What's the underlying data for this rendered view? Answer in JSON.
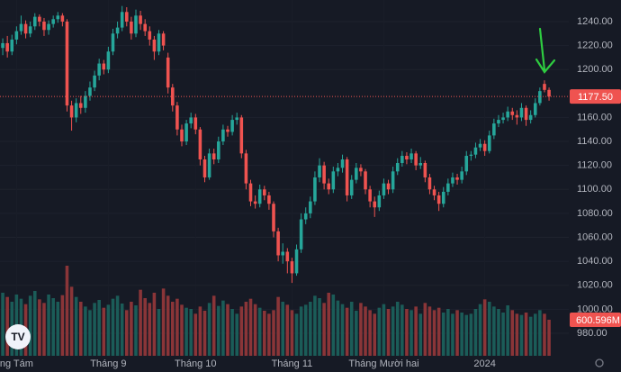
{
  "chart_data": {
    "type": "candlestick",
    "colors": {
      "up": "#26a69a",
      "down": "#ef5350",
      "up_volume": "#1b5c58",
      "down_volume": "#8a3538"
    },
    "candles": [
      [
        1218,
        1226,
        1212,
        1222
      ],
      [
        1222,
        1228,
        1210,
        1215
      ],
      [
        1215,
        1229,
        1212,
        1225
      ],
      [
        1225,
        1236,
        1221,
        1232
      ],
      [
        1232,
        1245,
        1229,
        1238
      ],
      [
        1238,
        1241,
        1226,
        1230
      ],
      [
        1230,
        1240,
        1227,
        1236
      ],
      [
        1236,
        1247,
        1233,
        1244
      ],
      [
        1244,
        1246,
        1236,
        1240
      ],
      [
        1240,
        1243,
        1228,
        1233
      ],
      [
        1233,
        1241,
        1229,
        1238
      ],
      [
        1238,
        1245,
        1235,
        1242
      ],
      [
        1242,
        1248,
        1239,
        1245
      ],
      [
        1245,
        1247,
        1236,
        1240
      ],
      [
        1240,
        1242,
        1165,
        1170
      ],
      [
        1170,
        1174,
        1149,
        1160
      ],
      [
        1160,
        1176,
        1156,
        1172
      ],
      [
        1172,
        1178,
        1163,
        1168
      ],
      [
        1168,
        1182,
        1164,
        1178
      ],
      [
        1178,
        1190,
        1174,
        1185
      ],
      [
        1185,
        1199,
        1182,
        1195
      ],
      [
        1195,
        1209,
        1191,
        1205
      ],
      [
        1205,
        1208,
        1196,
        1200
      ],
      [
        1200,
        1219,
        1197,
        1215
      ],
      [
        1215,
        1234,
        1212,
        1230
      ],
      [
        1230,
        1240,
        1226,
        1235
      ],
      [
        1235,
        1253,
        1232,
        1248
      ],
      [
        1248,
        1252,
        1236,
        1240
      ],
      [
        1240,
        1244,
        1225,
        1230
      ],
      [
        1230,
        1250,
        1227,
        1245
      ],
      [
        1245,
        1249,
        1233,
        1238
      ],
      [
        1238,
        1242,
        1228,
        1232
      ],
      [
        1232,
        1236,
        1220,
        1225
      ],
      [
        1225,
        1228,
        1208,
        1215
      ],
      [
        1215,
        1233,
        1212,
        1230
      ],
      [
        1230,
        1232,
        1216,
        1220
      ],
      [
        1210,
        1214,
        1180,
        1185
      ],
      [
        1185,
        1188,
        1165,
        1170
      ],
      [
        1170,
        1173,
        1145,
        1150
      ],
      [
        1150,
        1154,
        1136,
        1140
      ],
      [
        1140,
        1158,
        1137,
        1155
      ],
      [
        1155,
        1164,
        1151,
        1160
      ],
      [
        1160,
        1163,
        1146,
        1150
      ],
      [
        1150,
        1152,
        1120,
        1125
      ],
      [
        1125,
        1128,
        1106,
        1110
      ],
      [
        1110,
        1134,
        1108,
        1130
      ],
      [
        1130,
        1134,
        1121,
        1125
      ],
      [
        1125,
        1144,
        1122,
        1140
      ],
      [
        1140,
        1154,
        1137,
        1150
      ],
      [
        1150,
        1153,
        1144,
        1148
      ],
      [
        1148,
        1162,
        1145,
        1158
      ],
      [
        1158,
        1164,
        1154,
        1160
      ],
      [
        1160,
        1162,
        1126,
        1130
      ],
      [
        1130,
        1133,
        1100,
        1105
      ],
      [
        1105,
        1108,
        1086,
        1090
      ],
      [
        1090,
        1095,
        1084,
        1088
      ],
      [
        1088,
        1104,
        1085,
        1100
      ],
      [
        1100,
        1103,
        1091,
        1095
      ],
      [
        1095,
        1098,
        1083,
        1088
      ],
      [
        1088,
        1090,
        1060,
        1065
      ],
      [
        1065,
        1068,
        1040,
        1045
      ],
      [
        1045,
        1055,
        1038,
        1048
      ],
      [
        1048,
        1051,
        1030,
        1040
      ],
      [
        1040,
        1043,
        1022,
        1030
      ],
      [
        1030,
        1054,
        1028,
        1050
      ],
      [
        1050,
        1080,
        1047,
        1075
      ],
      [
        1075,
        1085,
        1071,
        1080
      ],
      [
        1080,
        1094,
        1076,
        1090
      ],
      [
        1090,
        1115,
        1087,
        1110
      ],
      [
        1110,
        1126,
        1106,
        1120
      ],
      [
        1120,
        1123,
        1100,
        1105
      ],
      [
        1105,
        1109,
        1096,
        1100
      ],
      [
        1100,
        1119,
        1097,
        1115
      ],
      [
        1115,
        1122,
        1111,
        1118
      ],
      [
        1118,
        1129,
        1114,
        1125
      ],
      [
        1125,
        1127,
        1090,
        1095
      ],
      [
        1095,
        1112,
        1092,
        1108
      ],
      [
        1108,
        1122,
        1105,
        1118
      ],
      [
        1118,
        1121,
        1111,
        1115
      ],
      [
        1115,
        1117,
        1096,
        1100
      ],
      [
        1100,
        1103,
        1085,
        1090
      ],
      [
        1090,
        1094,
        1077,
        1085
      ],
      [
        1085,
        1099,
        1082,
        1095
      ],
      [
        1095,
        1109,
        1092,
        1105
      ],
      [
        1105,
        1108,
        1096,
        1100
      ],
      [
        1100,
        1119,
        1097,
        1115
      ],
      [
        1115,
        1126,
        1112,
        1122
      ],
      [
        1122,
        1132,
        1119,
        1128
      ],
      [
        1128,
        1131,
        1121,
        1125
      ],
      [
        1125,
        1134,
        1122,
        1130
      ],
      [
        1130,
        1132,
        1116,
        1120
      ],
      [
        1120,
        1127,
        1117,
        1122
      ],
      [
        1122,
        1124,
        1106,
        1110
      ],
      [
        1110,
        1113,
        1096,
        1100
      ],
      [
        1100,
        1103,
        1091,
        1095
      ],
      [
        1095,
        1098,
        1082,
        1088
      ],
      [
        1088,
        1102,
        1085,
        1098
      ],
      [
        1098,
        1109,
        1095,
        1105
      ],
      [
        1105,
        1114,
        1102,
        1110
      ],
      [
        1110,
        1113,
        1104,
        1108
      ],
      [
        1108,
        1119,
        1105,
        1115
      ],
      [
        1115,
        1132,
        1112,
        1128
      ],
      [
        1128,
        1132,
        1124,
        1129
      ],
      [
        1129,
        1139,
        1126,
        1135
      ],
      [
        1135,
        1142,
        1132,
        1138
      ],
      [
        1138,
        1141,
        1128,
        1132
      ],
      [
        1132,
        1149,
        1130,
        1145
      ],
      [
        1145,
        1159,
        1142,
        1155
      ],
      [
        1155,
        1162,
        1152,
        1158
      ],
      [
        1158,
        1164,
        1155,
        1160
      ],
      [
        1160,
        1169,
        1157,
        1165
      ],
      [
        1165,
        1168,
        1158,
        1162
      ],
      [
        1162,
        1166,
        1154,
        1160
      ],
      [
        1160,
        1172,
        1157,
        1168
      ],
      [
        1168,
        1170,
        1153,
        1158
      ],
      [
        1158,
        1166,
        1155,
        1162
      ],
      [
        1162,
        1176,
        1160,
        1172
      ],
      [
        1172,
        1185,
        1170,
        1182
      ],
      [
        1188,
        1191,
        1181,
        1183
      ],
      [
        1183,
        1185,
        1174,
        1177.5
      ]
    ],
    "volumes": [
      1050,
      980,
      900,
      1020,
      950,
      860,
      1000,
      1080,
      940,
      880,
      1020,
      960,
      900,
      1010,
      1500,
      1150,
      980,
      900,
      820,
      760,
      880,
      930,
      800,
      850,
      950,
      1000,
      870,
      760,
      900,
      840,
      1100,
      960,
      880,
      1050,
      780,
      1120,
      1000,
      900,
      950,
      850,
      800,
      780,
      700,
      820,
      750,
      880,
      1000,
      830,
      920,
      860,
      780,
      700,
      820,
      900,
      950,
      860,
      800,
      750,
      700,
      760,
      980,
      900,
      850,
      760,
      700,
      820,
      850,
      900,
      1000,
      960,
      880,
      1050,
      1020,
      920,
      860,
      800,
      900,
      750,
      880,
      820,
      760,
      700,
      800,
      860,
      780,
      820,
      900,
      850,
      780,
      760,
      820,
      700,
      880,
      820,
      760,
      800,
      720,
      780,
      700,
      760,
      720,
      680,
      700,
      780,
      860,
      940,
      900,
      820,
      780,
      720,
      840,
      760,
      700,
      680,
      720,
      650,
      700,
      760,
      700,
      600.596
    ],
    "last_close_label": "1177.50",
    "last_volume_label": "600.596M",
    "xlim": [
      -0.6,
      123.3
    ],
    "ylim": [
      961.2,
      1258.0
    ],
    "y2lim": [
      0,
      5925
    ],
    "xticks": [
      {
        "value": 3,
        "label": "ng Tám"
      },
      {
        "value": 23,
        "label": "Tháng 9"
      },
      {
        "value": 42,
        "label": "Tháng 10"
      },
      {
        "value": 63,
        "label": "Tháng 11"
      },
      {
        "value": 83,
        "label": "Tháng Mười hai"
      },
      {
        "value": 105,
        "label": "2024"
      }
    ],
    "yticks": [
      {
        "value": 980,
        "label": "980.00"
      },
      {
        "value": 1000,
        "label": "1000.00"
      },
      {
        "value": 1020,
        "label": "1020.00"
      },
      {
        "value": 1040,
        "label": "1040.00"
      },
      {
        "value": 1060,
        "label": "1060.00"
      },
      {
        "value": 1080,
        "label": "1080.00"
      },
      {
        "value": 1100,
        "label": "1100.00"
      },
      {
        "value": 1120,
        "label": "1120.00"
      },
      {
        "value": 1140,
        "label": "1140.00"
      },
      {
        "value": 1160,
        "label": "1160.00"
      },
      {
        "value": 1200,
        "label": "1200.00"
      },
      {
        "value": 1220,
        "label": "1220.00"
      },
      {
        "value": 1240,
        "label": "1240.00"
      }
    ]
  }
}
